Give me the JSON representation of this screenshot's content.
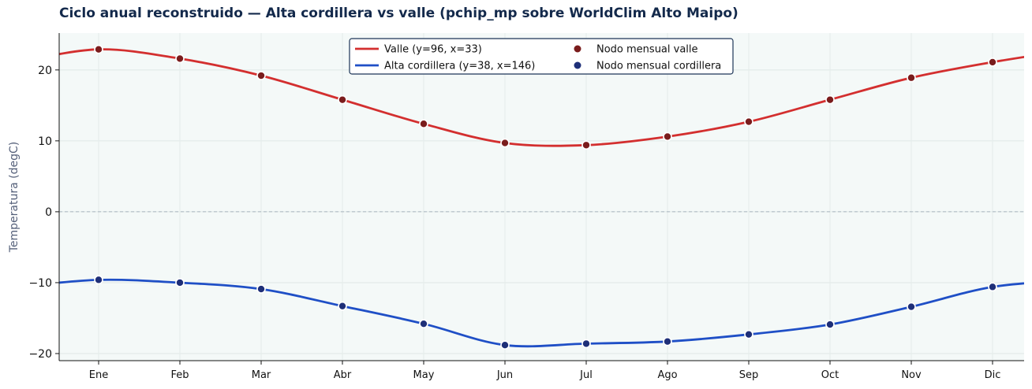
{
  "chart_data": {
    "type": "line",
    "title": "Ciclo anual reconstruido — Alta cordillera vs valle (pchip_mp sobre WorldClim Alto Maipo)",
    "xlabel": "",
    "ylabel": "Temperatura (degC)",
    "categories": [
      "Ene",
      "Feb",
      "Mar",
      "Abr",
      "May",
      "Jun",
      "Jul",
      "Ago",
      "Sep",
      "Oct",
      "Nov",
      "Dic"
    ],
    "ylim": [
      -21,
      25.2
    ],
    "yticks": [
      -20,
      -10,
      0,
      10,
      20
    ],
    "ytick_labels": [
      "−20",
      "−10",
      "0",
      "10",
      "20"
    ],
    "grid": true,
    "zero_line": true,
    "legend_position": "top-center",
    "series": [
      {
        "name": "Valle (y=96, x=33)",
        "color": "#d32f2f",
        "values": [
          22.9,
          21.6,
          19.2,
          15.8,
          12.4,
          9.7,
          9.4,
          10.6,
          12.7,
          15.8,
          18.9,
          21.1
        ]
      },
      {
        "name": "Alta cordillera (y=38, x=146)",
        "color": "#1f4fc6",
        "values": [
          -9.6,
          -10.0,
          -10.9,
          -13.3,
          -15.8,
          -18.8,
          -18.6,
          -18.3,
          -17.3,
          -15.9,
          -13.4,
          -10.6
        ]
      }
    ],
    "node_series": [
      {
        "name": "Nodo mensual valle",
        "color": "#7a1c1c"
      },
      {
        "name": "Nodo mensual cordillera",
        "color": "#1e2f78"
      }
    ]
  }
}
